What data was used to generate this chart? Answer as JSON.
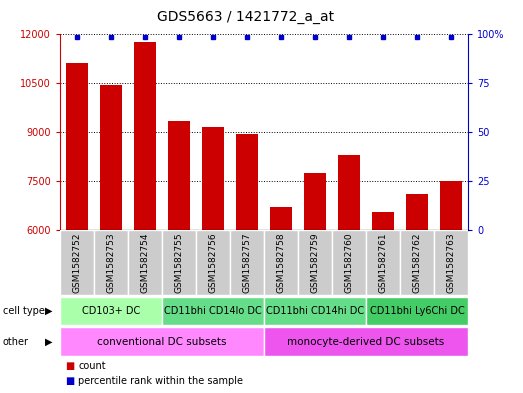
{
  "title": "GDS5663 / 1421772_a_at",
  "samples": [
    "GSM1582752",
    "GSM1582753",
    "GSM1582754",
    "GSM1582755",
    "GSM1582756",
    "GSM1582757",
    "GSM1582758",
    "GSM1582759",
    "GSM1582760",
    "GSM1582761",
    "GSM1582762",
    "GSM1582763"
  ],
  "counts": [
    11100,
    10450,
    11750,
    9350,
    9150,
    8950,
    6700,
    7750,
    8300,
    6550,
    7100,
    7500
  ],
  "ylim_left": [
    6000,
    12000
  ],
  "ylim_right": [
    0,
    100
  ],
  "yticks_left": [
    6000,
    7500,
    9000,
    10500,
    12000
  ],
  "yticks_right": [
    0,
    25,
    50,
    75,
    100
  ],
  "bar_color": "#cc0000",
  "dot_color": "#0000cc",
  "bar_width": 0.65,
  "cell_types": [
    {
      "label": "CD103+ DC",
      "start": 0,
      "end": 3,
      "color": "#aaffaa"
    },
    {
      "label": "CD11bhi CD14lo DC",
      "start": 3,
      "end": 6,
      "color": "#66dd88"
    },
    {
      "label": "CD11bhi CD14hi DC",
      "start": 6,
      "end": 9,
      "color": "#66dd88"
    },
    {
      "label": "CD11bhi Ly6Chi DC",
      "start": 9,
      "end": 12,
      "color": "#44cc66"
    }
  ],
  "other_groups": [
    {
      "label": "conventional DC subsets",
      "start": 0,
      "end": 6,
      "color": "#ff88ff"
    },
    {
      "label": "monocyte-derived DC subsets",
      "start": 6,
      "end": 12,
      "color": "#ee55ee"
    }
  ],
  "bg_color": "#cccccc",
  "title_fontsize": 10,
  "tick_fontsize": 7,
  "sample_fontsize": 6.5,
  "legend_fontsize": 7,
  "cell_type_fontsize": 7,
  "other_fontsize": 7.5
}
